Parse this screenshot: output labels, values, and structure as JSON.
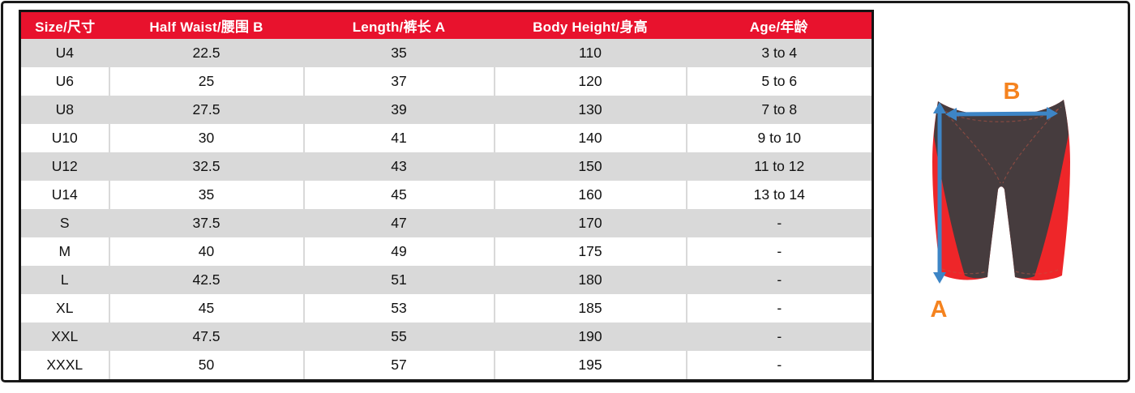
{
  "chart_data": {
    "type": "table",
    "columns": [
      "Size/尺寸",
      "Half Waist/腰围 B",
      "Length/裤长 A",
      "Body Height/身高",
      "Age/年龄"
    ],
    "rows": [
      [
        "U4",
        "22.5",
        "35",
        "110",
        "3 to 4"
      ],
      [
        "U6",
        "25",
        "37",
        "120",
        "5 to 6"
      ],
      [
        "U8",
        "27.5",
        "39",
        "130",
        "7 to 8"
      ],
      [
        "U10",
        "30",
        "41",
        "140",
        "9 to 10"
      ],
      [
        "U12",
        "32.5",
        "43",
        "150",
        "11 to 12"
      ],
      [
        "U14",
        "35",
        "45",
        "160",
        "13 to 14"
      ],
      [
        "S",
        "37.5",
        "47",
        "170",
        "-"
      ],
      [
        "M",
        "40",
        "49",
        "175",
        "-"
      ],
      [
        "L",
        "42.5",
        "51",
        "180",
        "-"
      ],
      [
        "XL",
        "45",
        "53",
        "185",
        "-"
      ],
      [
        "XXL",
        "47.5",
        "55",
        "190",
        "-"
      ],
      [
        "XXXL",
        "50",
        "57",
        "195",
        "-"
      ]
    ],
    "layout_hints": {
      "header_style": "red band, white bold text",
      "row_striping": "first data row gray, alternating gray/white",
      "legend_position": "none"
    }
  },
  "diagram": {
    "label_a": "A",
    "label_b": "B",
    "arrow_b": "horizontal double-headed arrow across waist",
    "arrow_a": "vertical double-headed arrow along full length"
  },
  "colors": {
    "header-bg": "#e8122d",
    "header-text": "#ffffff",
    "row-alt": "#d9d9d9",
    "table-border": "#141414",
    "frame-border": "#1a1a1a",
    "suit-dark": "#463c3e",
    "suit-red": "#ee2629",
    "arrow-blue": "#3d85c6",
    "label-orange": "#f5831f"
  }
}
